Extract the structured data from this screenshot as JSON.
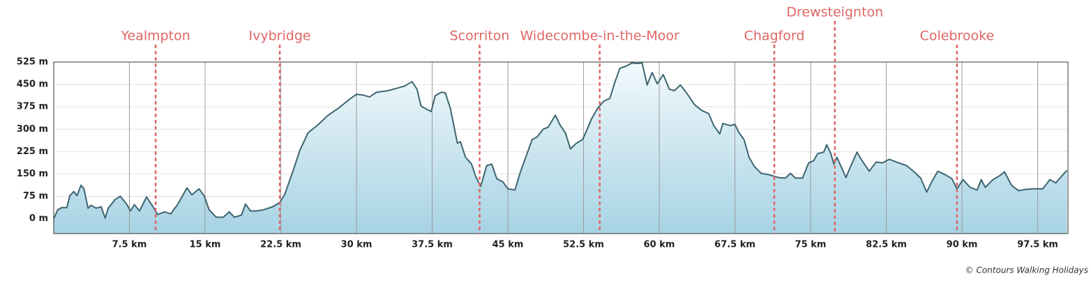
{
  "chart_data": {
    "type": "area",
    "x": [
      0,
      0.4,
      0.8,
      1.3,
      1.6,
      2.0,
      2.3,
      2.7,
      3.0,
      3.4,
      3.7,
      4.2,
      4.7,
      5.1,
      5.4,
      6.1,
      6.6,
      7.2,
      7.6,
      8.0,
      8.5,
      9.2,
      9.8,
      10.3,
      11.0,
      11.6,
      12.3,
      13.2,
      13.7,
      14.4,
      14.9,
      15.4,
      16.1,
      16.8,
      17.4,
      17.9,
      18.6,
      19.0,
      19.5,
      20.1,
      20.8,
      21.7,
      22.4,
      22.9,
      23.7,
      24.4,
      25.2,
      26.1,
      27.2,
      28.2,
      29.3,
      30.0,
      30.6,
      31.3,
      32.0,
      33.1,
      34.1,
      34.8,
      35.5,
      36.0,
      36.4,
      37.0,
      37.4,
      37.8,
      38.4,
      38.8,
      39.3,
      40.0,
      40.3,
      40.8,
      41.4,
      41.8,
      42.3,
      42.9,
      43.4,
      43.9,
      44.5,
      45.0,
      45.7,
      46.2,
      46.7,
      47.4,
      47.9,
      48.5,
      49.0,
      49.7,
      50.2,
      50.7,
      51.2,
      51.8,
      52.4,
      52.8,
      53.3,
      53.9,
      54.5,
      55.1,
      55.6,
      56.1,
      56.7,
      57.3,
      57.8,
      58.3,
      58.8,
      59.3,
      59.8,
      60.4,
      61.0,
      61.5,
      62.1,
      62.8,
      63.5,
      64.2,
      64.9,
      65.4,
      66.0,
      66.3,
      67.0,
      67.5,
      67.9,
      68.4,
      68.9,
      69.4,
      70.1,
      70.8,
      71.8,
      72.5,
      73.0,
      73.5,
      74.2,
      74.8,
      75.3,
      75.7,
      76.3,
      76.6,
      77.0,
      77.3,
      77.6,
      78.0,
      78.5,
      79.0,
      79.6,
      80.1,
      80.8,
      81.5,
      82.1,
      82.8,
      83.5,
      84.5,
      85.2,
      85.9,
      86.5,
      87.0,
      87.6,
      88.3,
      89.0,
      89.5,
      90.1,
      90.8,
      91.5,
      91.9,
      92.3,
      93.0,
      93.9,
      94.2,
      94.9,
      95.6,
      96.3,
      97.0,
      98.0,
      98.7,
      99.3,
      99.7,
      100.4
    ],
    "values": [
      0,
      30,
      37,
      37,
      77,
      91,
      77,
      112,
      100,
      35,
      45,
      35,
      40,
      2,
      35,
      65,
      75,
      50,
      26,
      47,
      26,
      73,
      42,
      14,
      23,
      16,
      49,
      103,
      80,
      100,
      77,
      30,
      5,
      5,
      23,
      5,
      12,
      49,
      26,
      26,
      30,
      40,
      54,
      82,
      159,
      230,
      288,
      312,
      347,
      370,
      400,
      417,
      415,
      408,
      424,
      429,
      438,
      445,
      459,
      434,
      377,
      366,
      359,
      412,
      424,
      422,
      370,
      253,
      258,
      206,
      183,
      143,
      108,
      178,
      183,
      134,
      124,
      100,
      96,
      152,
      199,
      265,
      274,
      300,
      307,
      347,
      312,
      288,
      234,
      253,
      265,
      295,
      335,
      370,
      394,
      403,
      457,
      504,
      511,
      522,
      520,
      522,
      448,
      490,
      452,
      483,
      434,
      429,
      448,
      417,
      382,
      363,
      352,
      312,
      284,
      319,
      312,
      316,
      288,
      265,
      206,
      176,
      152,
      148,
      138,
      136,
      152,
      136,
      136,
      187,
      194,
      218,
      223,
      248,
      218,
      183,
      206,
      176,
      138,
      178,
      223,
      194,
      159,
      190,
      187,
      199,
      190,
      178,
      159,
      136,
      89,
      124,
      159,
      148,
      134,
      100,
      131,
      105,
      96,
      131,
      105,
      129,
      148,
      157,
      112,
      94,
      98,
      100,
      100,
      131,
      120,
      136,
      162
    ],
    "color": "#3d6570",
    "xlim": [
      0,
      100.5
    ],
    "ylim": [
      -50,
      525
    ],
    "xticks": [
      {
        "value": 7.5,
        "label": "7.5 km"
      },
      {
        "value": 15,
        "label": "15 km"
      },
      {
        "value": 22.5,
        "label": "22.5 km"
      },
      {
        "value": 30,
        "label": "30 km"
      },
      {
        "value": 37.5,
        "label": "37.5 km"
      },
      {
        "value": 45,
        "label": "45 km"
      },
      {
        "value": 52.5,
        "label": "52.5 km"
      },
      {
        "value": 60,
        "label": "60 km"
      },
      {
        "value": 67.5,
        "label": "67.5 km"
      },
      {
        "value": 75,
        "label": "75 km"
      },
      {
        "value": 82.5,
        "label": "82.5 km"
      },
      {
        "value": 90,
        "label": "90 km"
      },
      {
        "value": 97.5,
        "label": "97.5 km"
      }
    ],
    "yticks": [
      {
        "value": 0,
        "label": "0 m"
      },
      {
        "value": 75,
        "label": "75 m"
      },
      {
        "value": 150,
        "label": "150 m"
      },
      {
        "value": 225,
        "label": "225 m"
      },
      {
        "value": 300,
        "label": "300 m"
      },
      {
        "value": 375,
        "label": "375 m"
      },
      {
        "value": 450,
        "label": "450 m"
      },
      {
        "value": 525,
        "label": "525 m"
      }
    ],
    "grid": true,
    "markers": [
      {
        "label": "Yealmpton",
        "x": 10.1
      },
      {
        "label": "Ivybridge",
        "x": 22.4
      },
      {
        "label": "Scorriton",
        "x": 42.2
      },
      {
        "label": "Widecombe-in-the-Moor",
        "x": 54.1
      },
      {
        "label": "Chagford",
        "x": 71.4
      },
      {
        "label": "Drewsteignton",
        "x": 77.4
      },
      {
        "label": "Colebrooke",
        "x": 89.5
      }
    ],
    "marker_color": "#e06666",
    "credit": "© Contours Walking Holidays"
  }
}
